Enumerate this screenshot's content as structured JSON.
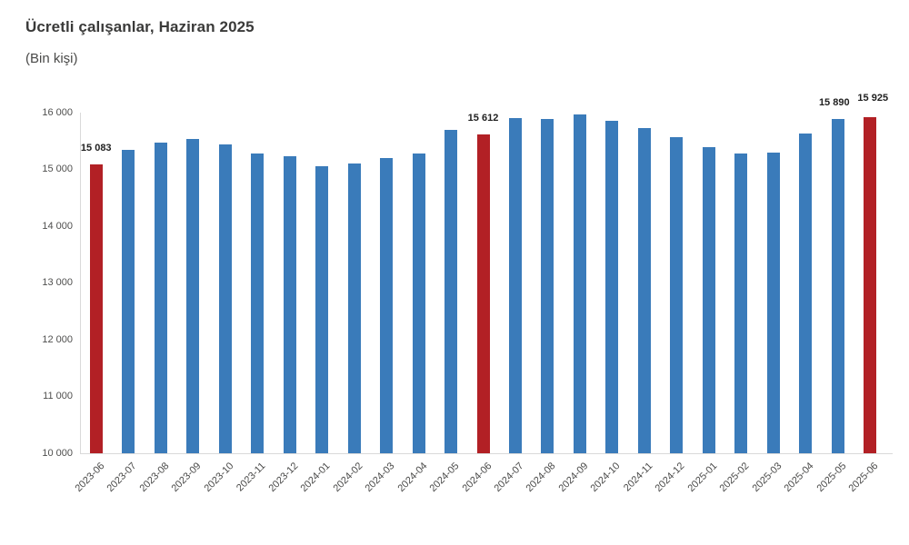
{
  "header": {
    "title": "Ücretli çalışanlar, Haziran 2025",
    "subtitle": "(Bin kişi)"
  },
  "colors": {
    "bar_blue": "#3a7bba",
    "bar_red": "#b22025",
    "axis_line": "#d9d9d9",
    "tick_text": "#4a4a49",
    "data_label_text": "#1f1f1f",
    "title_text": "#3a3a39"
  },
  "chart_data": {
    "type": "bar",
    "title": "Ücretli çalışanlar, Haziran 2025",
    "subtitle": "(Bin kişi)",
    "ylabel": "",
    "xlabel": "",
    "ylim": [
      10000,
      16000
    ],
    "ytick_step": 1000,
    "ytick_labels": [
      "16 000",
      "15 000",
      "14 000",
      "13 000",
      "12 000",
      "11 000",
      "10 000"
    ],
    "grid": false,
    "legend": false,
    "categories": [
      "2023-06",
      "2023-07",
      "2023-08",
      "2023-09",
      "2023-10",
      "2023-11",
      "2023-12",
      "2024-01",
      "2024-02",
      "2024-03",
      "2024-04",
      "2024-05",
      "2024-06",
      "2024-07",
      "2024-08",
      "2024-09",
      "2024-10",
      "2024-11",
      "2024-12",
      "2025-01",
      "2025-02",
      "2025-03",
      "2025-04",
      "2025-05",
      "2025-06"
    ],
    "values": [
      15083,
      15350,
      15465,
      15540,
      15435,
      15275,
      15230,
      15060,
      15100,
      15205,
      15275,
      15690,
      15612,
      15905,
      15895,
      15975,
      15850,
      15735,
      15570,
      15400,
      15280,
      15300,
      15635,
      15890,
      15925
    ],
    "highlighted_categories": [
      "2023-06",
      "2024-06",
      "2025-06"
    ],
    "data_labels": [
      {
        "category": "2023-06",
        "text": "15 083"
      },
      {
        "category": "2024-06",
        "text": "15 612"
      },
      {
        "category": "2025-05",
        "text": "15 890"
      },
      {
        "category": "2025-06",
        "text": "15 925"
      }
    ]
  }
}
